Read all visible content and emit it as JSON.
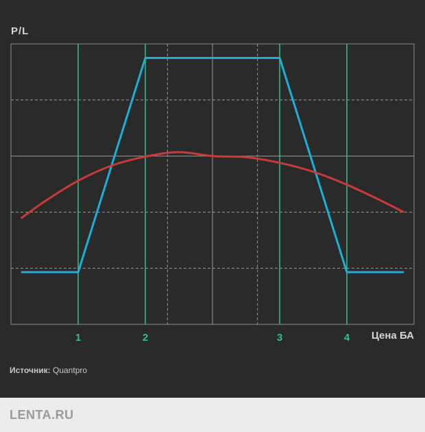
{
  "chart_data": {
    "type": "line",
    "ylabel": "P/L",
    "xlabel": "Цена БА",
    "xlim": [
      0,
      6
    ],
    "ylim": [
      0,
      5
    ],
    "grid": true,
    "x_ticks": [
      {
        "x": 1,
        "label": "1"
      },
      {
        "x": 2,
        "label": "2"
      },
      {
        "x": 4,
        "label": "3"
      },
      {
        "x": 5,
        "label": "4"
      }
    ],
    "series": [
      {
        "color": "#1ab0d8",
        "x": [
          0.15,
          1,
          2,
          4,
          5,
          5.85
        ],
        "y": [
          0.93,
          0.93,
          4.75,
          4.75,
          0.93,
          0.93
        ]
      },
      {
        "color": "#c93a3a",
        "x": [
          0.15,
          0.5,
          1,
          1.5,
          2,
          2.5,
          3,
          3.5,
          4,
          4.5,
          5,
          5.5,
          5.85
        ],
        "y": [
          1.89,
          2.19,
          2.56,
          2.83,
          2.99,
          3.07,
          3.0,
          2.98,
          2.88,
          2.72,
          2.49,
          2.21,
          2.0
        ]
      }
    ],
    "colors": {
      "axis_tick": "#2fbf8e",
      "gridline": "#9a9a9a",
      "frame": "#8c8c8c"
    }
  },
  "source": {
    "label": "Источник:",
    "value": "Quantpro"
  },
  "footer": {
    "logo": "LENTA.RU"
  }
}
